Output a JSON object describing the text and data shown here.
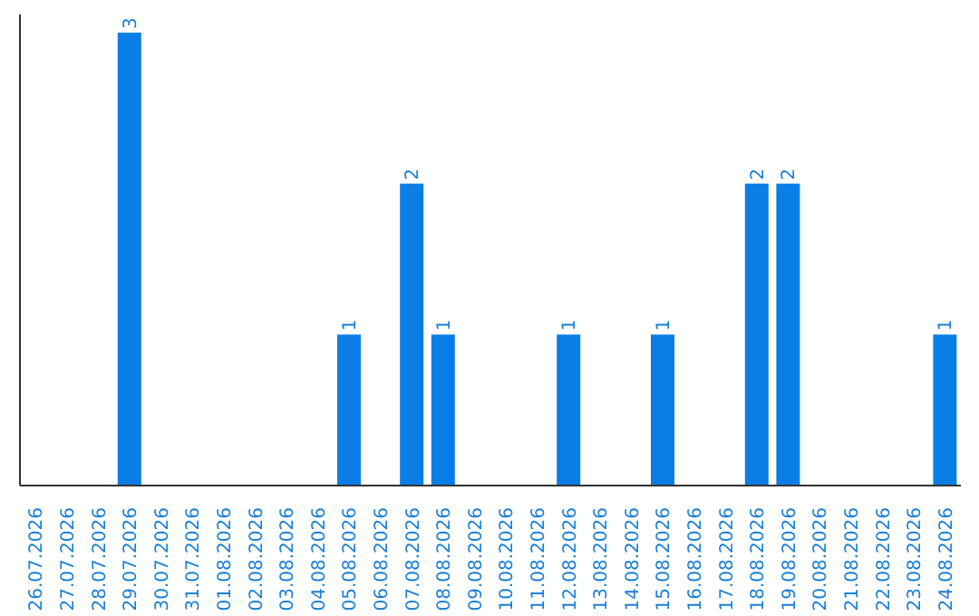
{
  "chart_data": {
    "type": "bar",
    "categories": [
      "26.07.2026",
      "27.07.2026",
      "28.07.2026",
      "29.07.2026",
      "30.07.2026",
      "31.07.2026",
      "01.08.2026",
      "02.08.2026",
      "03.08.2026",
      "04.08.2026",
      "05.08.2026",
      "06.08.2026",
      "07.08.2026",
      "08.08.2026",
      "09.08.2026",
      "10.08.2026",
      "11.08.2026",
      "12.08.2026",
      "13.08.2026",
      "14.08.2026",
      "15.08.2026",
      "16.08.2026",
      "17.08.2026",
      "18.08.2026",
      "19.08.2026",
      "20.08.2026",
      "21.08.2026",
      "22.08.2026",
      "23.08.2026",
      "24.08.2026"
    ],
    "values": [
      0,
      0,
      0,
      3,
      0,
      0,
      0,
      0,
      0,
      0,
      1,
      0,
      2,
      1,
      0,
      0,
      0,
      1,
      0,
      0,
      1,
      0,
      0,
      2,
      2,
      0,
      0,
      0,
      0,
      1
    ],
    "value_labels": [
      null,
      null,
      null,
      "3",
      null,
      null,
      null,
      null,
      null,
      null,
      "1",
      null,
      "2",
      "1",
      null,
      null,
      null,
      "1",
      null,
      null,
      "1",
      null,
      null,
      "2",
      "2",
      null,
      null,
      null,
      null,
      "1"
    ],
    "color": "#0a7ee6",
    "tick_labels": "x",
    "grid": false,
    "legend": false
  }
}
